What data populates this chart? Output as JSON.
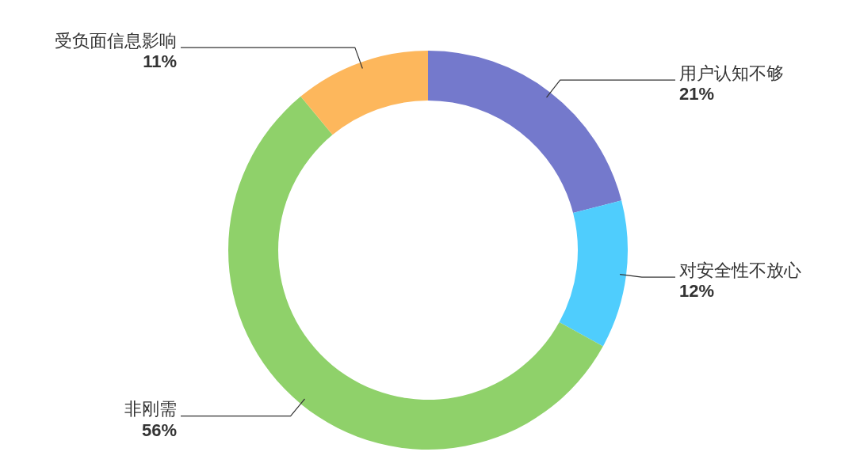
{
  "chart_data": {
    "type": "donut",
    "categories": [
      "用户认知不够",
      "对安全性不放心",
      "非刚需",
      "受负面信息影响"
    ],
    "values": [
      21,
      12,
      56,
      11
    ],
    "colors": [
      "#7479cc",
      "#4fcdfd",
      "#8fd16a",
      "#fdb75c"
    ],
    "value_labels": [
      "21%",
      "12%",
      "56%",
      "11%"
    ],
    "legend": false
  }
}
